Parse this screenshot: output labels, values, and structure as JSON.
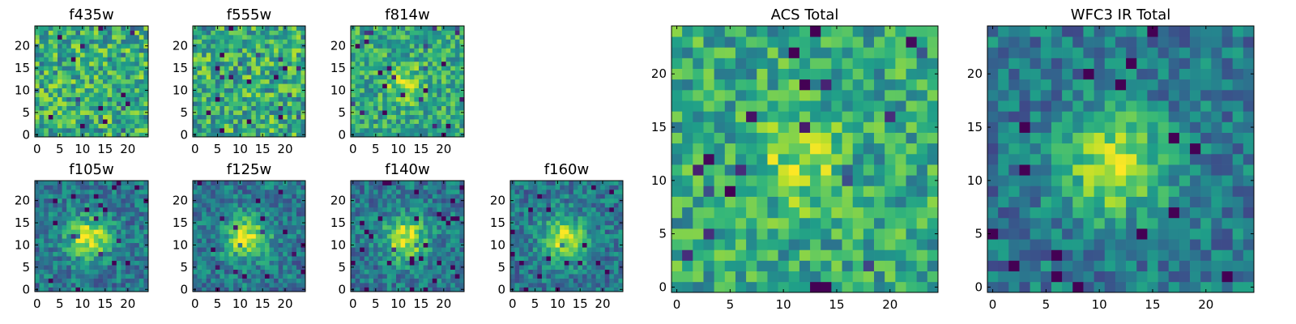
{
  "chart_data": [
    {
      "type": "heatmap",
      "title": "f435w",
      "grid": [
        25,
        25
      ],
      "xticks": [
        0,
        5,
        10,
        15,
        20
      ],
      "yticks": [
        0,
        5,
        10,
        15,
        20
      ],
      "xlim": [
        -0.5,
        24.5
      ],
      "ylim": [
        -0.5,
        24.5
      ],
      "colormap": "viridis",
      "pattern": "noise",
      "seed": 11
    },
    {
      "type": "heatmap",
      "title": "f555w",
      "grid": [
        25,
        25
      ],
      "xticks": [
        0,
        5,
        10,
        15,
        20
      ],
      "yticks": [
        0,
        5,
        10,
        15,
        20
      ],
      "xlim": [
        -0.5,
        24.5
      ],
      "ylim": [
        -0.5,
        24.5
      ],
      "colormap": "viridis",
      "pattern": "noise",
      "seed": 23
    },
    {
      "type": "heatmap",
      "title": "f814w",
      "grid": [
        25,
        25
      ],
      "xticks": [
        0,
        5,
        10,
        15,
        20
      ],
      "yticks": [
        0,
        5,
        10,
        15,
        20
      ],
      "xlim": [
        -0.5,
        24.5
      ],
      "ylim": [
        -0.5,
        24.5
      ],
      "colormap": "viridis",
      "pattern": "faint-source",
      "seed": 37
    },
    {
      "type": "heatmap",
      "title": "f105w",
      "grid": [
        25,
        25
      ],
      "xticks": [
        0,
        5,
        10,
        15,
        20
      ],
      "yticks": [
        0,
        5,
        10,
        15,
        20
      ],
      "xlim": [
        -0.5,
        24.5
      ],
      "ylim": [
        -0.5,
        24.5
      ],
      "colormap": "viridis",
      "pattern": "source",
      "seed": 41
    },
    {
      "type": "heatmap",
      "title": "f125w",
      "grid": [
        25,
        25
      ],
      "xticks": [
        0,
        5,
        10,
        15,
        20
      ],
      "yticks": [
        0,
        5,
        10,
        15,
        20
      ],
      "xlim": [
        -0.5,
        24.5
      ],
      "ylim": [
        -0.5,
        24.5
      ],
      "colormap": "viridis",
      "pattern": "source",
      "seed": 53
    },
    {
      "type": "heatmap",
      "title": "f140w",
      "grid": [
        25,
        25
      ],
      "xticks": [
        0,
        5,
        10,
        15,
        20
      ],
      "yticks": [
        0,
        5,
        10,
        15,
        20
      ],
      "xlim": [
        -0.5,
        24.5
      ],
      "ylim": [
        -0.5,
        24.5
      ],
      "colormap": "viridis",
      "pattern": "source",
      "seed": 67
    },
    {
      "type": "heatmap",
      "title": "f160w",
      "grid": [
        25,
        25
      ],
      "xticks": [
        0,
        5,
        10,
        15,
        20
      ],
      "yticks": [
        0,
        5,
        10,
        15,
        20
      ],
      "xlim": [
        -0.5,
        24.5
      ],
      "ylim": [
        -0.5,
        24.5
      ],
      "colormap": "viridis",
      "pattern": "source",
      "seed": 79
    },
    {
      "type": "heatmap",
      "title": "ACS Total",
      "grid": [
        25,
        25
      ],
      "xticks": [
        0,
        5,
        10,
        15,
        20
      ],
      "yticks": [
        0,
        5,
        10,
        15,
        20
      ],
      "xlim": [
        -0.5,
        24.5
      ],
      "ylim": [
        -0.5,
        24.5
      ],
      "colormap": "viridis",
      "pattern": "faint-source",
      "seed": 97
    },
    {
      "type": "heatmap",
      "title": "WFC3 IR Total",
      "grid": [
        25,
        25
      ],
      "xticks": [
        0,
        5,
        10,
        15,
        20
      ],
      "yticks": [
        0,
        5,
        10,
        15,
        20
      ],
      "xlim": [
        -0.5,
        24.5
      ],
      "ylim": [
        -0.5,
        24.5
      ],
      "colormap": "viridis",
      "pattern": "source",
      "seed": 113
    }
  ]
}
